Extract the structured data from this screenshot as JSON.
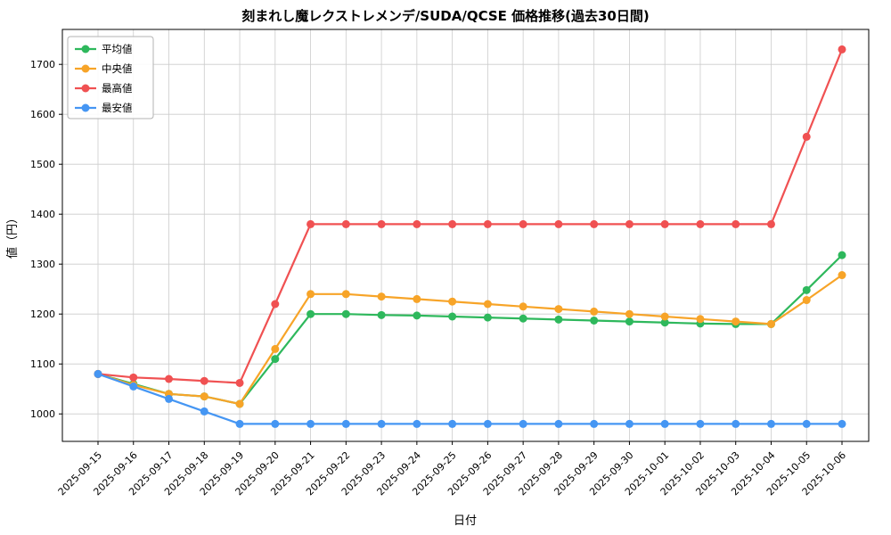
{
  "figure": {
    "background": "#ffffff"
  },
  "chart_data": {
    "type": "line",
    "title": "刻まれし魔レクストレメンデ/SUDA/QCSE 価格推移(過去30日間)",
    "xlabel": "日付",
    "ylabel": "値（円）",
    "x": [
      "2025-09-15",
      "2025-09-16",
      "2025-09-17",
      "2025-09-18",
      "2025-09-19",
      "2025-09-20",
      "2025-09-21",
      "2025-09-22",
      "2025-09-23",
      "2025-09-24",
      "2025-09-25",
      "2025-09-26",
      "2025-09-27",
      "2025-09-28",
      "2025-09-29",
      "2025-09-30",
      "2025-10-01",
      "2025-10-02",
      "2025-10-03",
      "2025-10-04",
      "2025-10-05",
      "2025-10-06"
    ],
    "series": [
      {
        "key": "average",
        "name": "平均値",
        "color": "#2eb85c",
        "values": [
          1080,
          1060,
          1040,
          1035,
          1020,
          1110,
          1200,
          1200,
          1198,
          1197,
          1195,
          1193,
          1191,
          1189,
          1187,
          1185,
          1183,
          1181,
          1180,
          1180,
          1248,
          1318
        ]
      },
      {
        "key": "median",
        "name": "中央値",
        "color": "#f7a428",
        "values": [
          1080,
          1058,
          1040,
          1035,
          1020,
          1130,
          1240,
          1240,
          1235,
          1230,
          1225,
          1220,
          1215,
          1210,
          1205,
          1200,
          1195,
          1190,
          1185,
          1180,
          1228,
          1278
        ]
      },
      {
        "key": "max",
        "name": "最高値",
        "color": "#f05152",
        "values": [
          1080,
          1073,
          1070,
          1066,
          1062,
          1220,
          1380,
          1380,
          1380,
          1380,
          1380,
          1380,
          1380,
          1380,
          1380,
          1380,
          1380,
          1380,
          1380,
          1380,
          1555,
          1730
        ]
      },
      {
        "key": "min",
        "name": "最安値",
        "color": "#4596f3",
        "values": [
          1080,
          1055,
          1030,
          1005,
          980,
          980,
          980,
          980,
          980,
          980,
          980,
          980,
          980,
          980,
          980,
          980,
          980,
          980,
          980,
          980,
          980,
          980
        ]
      }
    ],
    "ylim": [
      945,
      1770
    ],
    "yticks": [
      1000,
      1100,
      1200,
      1300,
      1400,
      1500,
      1600,
      1700
    ],
    "grid": true,
    "grid_color": "#cccccc",
    "legend_position": "upper-left"
  }
}
